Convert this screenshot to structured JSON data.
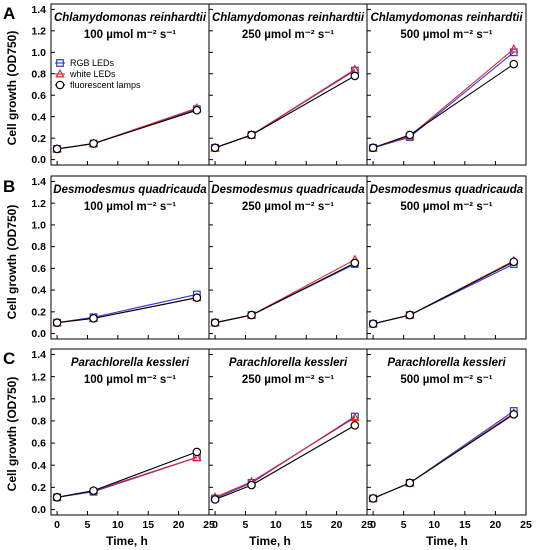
{
  "figure": {
    "ylabel": "Cell growth (OD750)",
    "xlabel": "Time, h",
    "row_letters": [
      "A",
      "B",
      "C"
    ],
    "light_unit": "µmol m⁻² s⁻¹"
  },
  "legend": [
    {
      "name": "RGB LEDs",
      "color": "#2b3cd6",
      "marker": "square"
    },
    {
      "name": "white LEDs",
      "color": "#e0262b",
      "marker": "triangle"
    },
    {
      "name": "fluorescent lamps",
      "color": "#000000",
      "marker": "circle"
    }
  ],
  "chart_data": [
    {
      "type": "line",
      "title": "Chlamydomonas reinhardtii",
      "subtitle": "100 µmol m⁻² s⁻¹",
      "x": [
        0,
        6,
        23
      ],
      "xlim": [
        -1,
        25
      ],
      "xticks": [
        0,
        5,
        10,
        15,
        20,
        25
      ],
      "ylim": [
        -0.05,
        1.45
      ],
      "yticks": [
        "0.0",
        "0.2",
        "0.4",
        "0.6",
        "0.8",
        "1.0",
        "1.2",
        "1.4"
      ],
      "xlabel": "",
      "ylabel": "Cell growth (OD750)",
      "series": [
        {
          "name": "RGB LEDs",
          "values": [
            0.1,
            0.15,
            0.47
          ]
        },
        {
          "name": "white LEDs",
          "values": [
            0.1,
            0.15,
            0.48
          ]
        },
        {
          "name": "fluorescent lamps",
          "values": [
            0.1,
            0.15,
            0.46
          ]
        }
      ]
    },
    {
      "type": "line",
      "title": "Chlamydomonas reinhardtii",
      "subtitle": "250 µmol m⁻² s⁻¹",
      "x": [
        0,
        6,
        23
      ],
      "xlim": [
        -1,
        25
      ],
      "xticks": [
        0,
        5,
        10,
        15,
        20,
        25
      ],
      "ylim": [
        -0.05,
        1.45
      ],
      "yticks": [],
      "xlabel": "",
      "ylabel": "",
      "series": [
        {
          "name": "RGB LEDs",
          "values": [
            0.11,
            0.23,
            0.83
          ]
        },
        {
          "name": "white LEDs",
          "values": [
            0.11,
            0.23,
            0.84
          ]
        },
        {
          "name": "fluorescent lamps",
          "values": [
            0.11,
            0.23,
            0.78
          ]
        }
      ]
    },
    {
      "type": "line",
      "title": "Chlamydomonas reinhardtii",
      "subtitle": "500 µmol m⁻² s⁻¹",
      "x": [
        0,
        6,
        23
      ],
      "xlim": [
        -1,
        25
      ],
      "xticks": [
        0,
        5,
        10,
        15,
        20,
        25
      ],
      "ylim": [
        -0.05,
        1.45
      ],
      "yticks": [],
      "xlabel": "",
      "ylabel": "",
      "series": [
        {
          "name": "RGB LEDs",
          "values": [
            0.11,
            0.21,
            1.0
          ]
        },
        {
          "name": "white LEDs",
          "values": [
            0.11,
            0.22,
            1.03
          ]
        },
        {
          "name": "fluorescent lamps",
          "values": [
            0.11,
            0.23,
            0.89
          ]
        }
      ]
    },
    {
      "type": "line",
      "title": "Desmodesmus quadricauda",
      "subtitle": "100 µmol m⁻² s⁻¹",
      "x": [
        0,
        6,
        23
      ],
      "xlim": [
        -1,
        25
      ],
      "xticks": [
        0,
        5,
        10,
        15,
        20,
        25
      ],
      "ylim": [
        -0.05,
        1.45
      ],
      "yticks": [
        "0.0",
        "0.2",
        "0.4",
        "0.6",
        "0.8",
        "1.0",
        "1.2",
        "1.4"
      ],
      "xlabel": "",
      "ylabel": "Cell growth (OD750)",
      "series": [
        {
          "name": "RGB LEDs",
          "values": [
            0.1,
            0.15,
            0.36
          ]
        },
        {
          "name": "white LEDs",
          "values": [
            0.1,
            0.14,
            0.33
          ]
        },
        {
          "name": "fluorescent lamps",
          "values": [
            0.1,
            0.14,
            0.33
          ]
        }
      ]
    },
    {
      "type": "line",
      "title": "Desmodesmus quadricauda",
      "subtitle": "250 µmol m⁻² s⁻¹",
      "x": [
        0,
        6,
        23
      ],
      "xlim": [
        -1,
        25
      ],
      "xticks": [
        0,
        5,
        10,
        15,
        20,
        25
      ],
      "ylim": [
        -0.05,
        1.45
      ],
      "yticks": [],
      "xlabel": "",
      "ylabel": "",
      "series": [
        {
          "name": "RGB LEDs",
          "values": [
            0.1,
            0.17,
            0.64
          ]
        },
        {
          "name": "white LEDs",
          "values": [
            0.1,
            0.17,
            0.68
          ]
        },
        {
          "name": "fluorescent lamps",
          "values": [
            0.1,
            0.17,
            0.65
          ]
        }
      ]
    },
    {
      "type": "line",
      "title": "Desmodesmus quadricauda",
      "subtitle": "500 µmol m⁻² s⁻¹",
      "x": [
        0,
        6,
        23
      ],
      "xlim": [
        -1,
        25
      ],
      "xticks": [
        0,
        5,
        10,
        15,
        20,
        25
      ],
      "ylim": [
        -0.05,
        1.45
      ],
      "yticks": [],
      "xlabel": "",
      "ylabel": "",
      "series": [
        {
          "name": "RGB LEDs",
          "values": [
            0.09,
            0.17,
            0.64
          ]
        },
        {
          "name": "white LEDs",
          "values": [
            0.09,
            0.17,
            0.67
          ]
        },
        {
          "name": "fluorescent lamps",
          "values": [
            0.09,
            0.17,
            0.66
          ]
        }
      ]
    },
    {
      "type": "line",
      "title": "Parachlorella kessleri",
      "subtitle": "100 µmol m⁻² s⁻¹",
      "x": [
        0,
        6,
        23
      ],
      "xlim": [
        -1,
        25
      ],
      "xticks": [
        0,
        5,
        10,
        15,
        20,
        25
      ],
      "ylim": [
        -0.05,
        1.45
      ],
      "yticks": [
        "0.0",
        "0.2",
        "0.4",
        "0.6",
        "0.8",
        "1.0",
        "1.2",
        "1.4"
      ],
      "xlabel": "Time, h",
      "ylabel": "Cell growth (OD750)",
      "series": [
        {
          "name": "RGB LEDs",
          "values": [
            0.11,
            0.16,
            0.47
          ]
        },
        {
          "name": "white LEDs",
          "values": [
            0.11,
            0.17,
            0.47
          ]
        },
        {
          "name": "fluorescent lamps",
          "values": [
            0.11,
            0.17,
            0.52
          ]
        }
      ]
    },
    {
      "type": "line",
      "title": "Parachlorella kessleri",
      "subtitle": "250 µmol m⁻² s⁻¹",
      "x": [
        0,
        6,
        23
      ],
      "xlim": [
        -1,
        25
      ],
      "xticks": [
        0,
        5,
        10,
        15,
        20,
        25
      ],
      "ylim": [
        -0.05,
        1.45
      ],
      "yticks": [],
      "xlabel": "Time, h",
      "ylabel": "",
      "series": [
        {
          "name": "RGB LEDs",
          "values": [
            0.1,
            0.24,
            0.84
          ]
        },
        {
          "name": "white LEDs",
          "values": [
            0.11,
            0.25,
            0.83
          ]
        },
        {
          "name": "fluorescent lamps",
          "values": [
            0.09,
            0.22,
            0.76
          ]
        }
      ]
    },
    {
      "type": "line",
      "title": "Parachlorella kessleri",
      "subtitle": "500 µmol m⁻² s⁻¹",
      "x": [
        0,
        6,
        23
      ],
      "xlim": [
        -1,
        25
      ],
      "xticks": [
        0,
        5,
        10,
        15,
        20,
        25
      ],
      "ylim": [
        -0.05,
        1.45
      ],
      "yticks": [],
      "xlabel": "Time, h",
      "ylabel": "",
      "series": [
        {
          "name": "RGB LEDs",
          "values": [
            0.1,
            0.24,
            0.89
          ]
        },
        {
          "name": "white LEDs",
          "values": [
            0.1,
            0.24,
            0.87
          ]
        },
        {
          "name": "fluorescent lamps",
          "values": [
            0.1,
            0.24,
            0.86
          ]
        }
      ]
    }
  ]
}
